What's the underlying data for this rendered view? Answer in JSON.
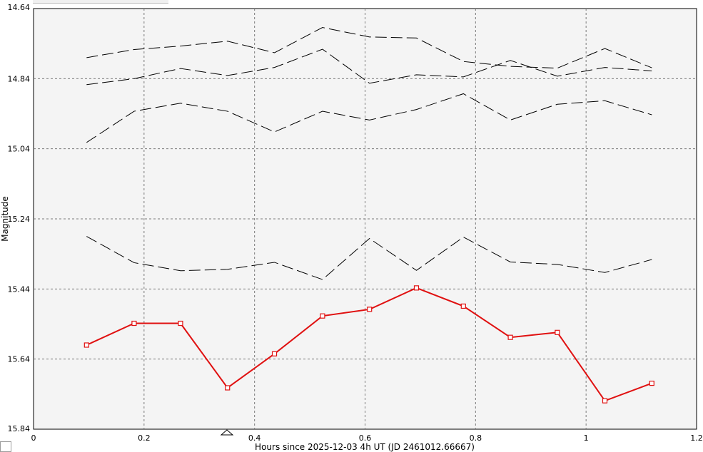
{
  "chart_data": {
    "type": "line",
    "xlabel": "Hours since 2025-12-03 4h UT (JD 2461012.66667)",
    "ylabel": "Magnitude",
    "xlim": [
      0,
      1.2
    ],
    "ylim": [
      14.64,
      15.84
    ],
    "y_inverted": true,
    "grid": true,
    "x_ticks": [
      "0",
      "0.2",
      "0.4",
      "0.6",
      "0.8",
      "1",
      "1.2"
    ],
    "y_ticks": [
      "14.64",
      "14.84",
      "15.04",
      "15.24",
      "15.44",
      "15.64",
      "15.84"
    ],
    "marker_x": 0.35,
    "x": [
      0.096,
      0.182,
      0.266,
      0.351,
      0.436,
      0.523,
      0.608,
      0.693,
      0.778,
      0.863,
      0.948,
      1.034,
      1.119
    ],
    "series": [
      {
        "color": "#000000",
        "dashed": true,
        "values": [
          14.78,
          14.757,
          14.747,
          14.733,
          14.766,
          14.694,
          14.721,
          14.724,
          14.791,
          14.805,
          14.81,
          14.754,
          14.809
        ]
      },
      {
        "color": "#000000",
        "dashed": true,
        "values": [
          14.857,
          14.84,
          14.811,
          14.831,
          14.808,
          14.756,
          14.853,
          14.829,
          14.835,
          14.788,
          14.833,
          14.808,
          14.818
        ]
      },
      {
        "color": "#000000",
        "dashed": true,
        "values": [
          15.022,
          14.933,
          14.91,
          14.933,
          14.992,
          14.933,
          14.958,
          14.928,
          14.883,
          14.958,
          14.913,
          14.903,
          14.943
        ]
      },
      {
        "color": "#000000",
        "dashed": true,
        "values": [
          15.29,
          15.365,
          15.388,
          15.384,
          15.364,
          15.413,
          15.296,
          15.387,
          15.292,
          15.363,
          15.37,
          15.393,
          15.356
        ]
      },
      {
        "color": "#e01010",
        "dashed": false,
        "markers": true,
        "values": [
          15.6,
          15.538,
          15.538,
          15.722,
          15.625,
          15.517,
          15.498,
          15.437,
          15.489,
          15.578,
          15.564,
          15.759,
          15.709
        ]
      }
    ]
  }
}
